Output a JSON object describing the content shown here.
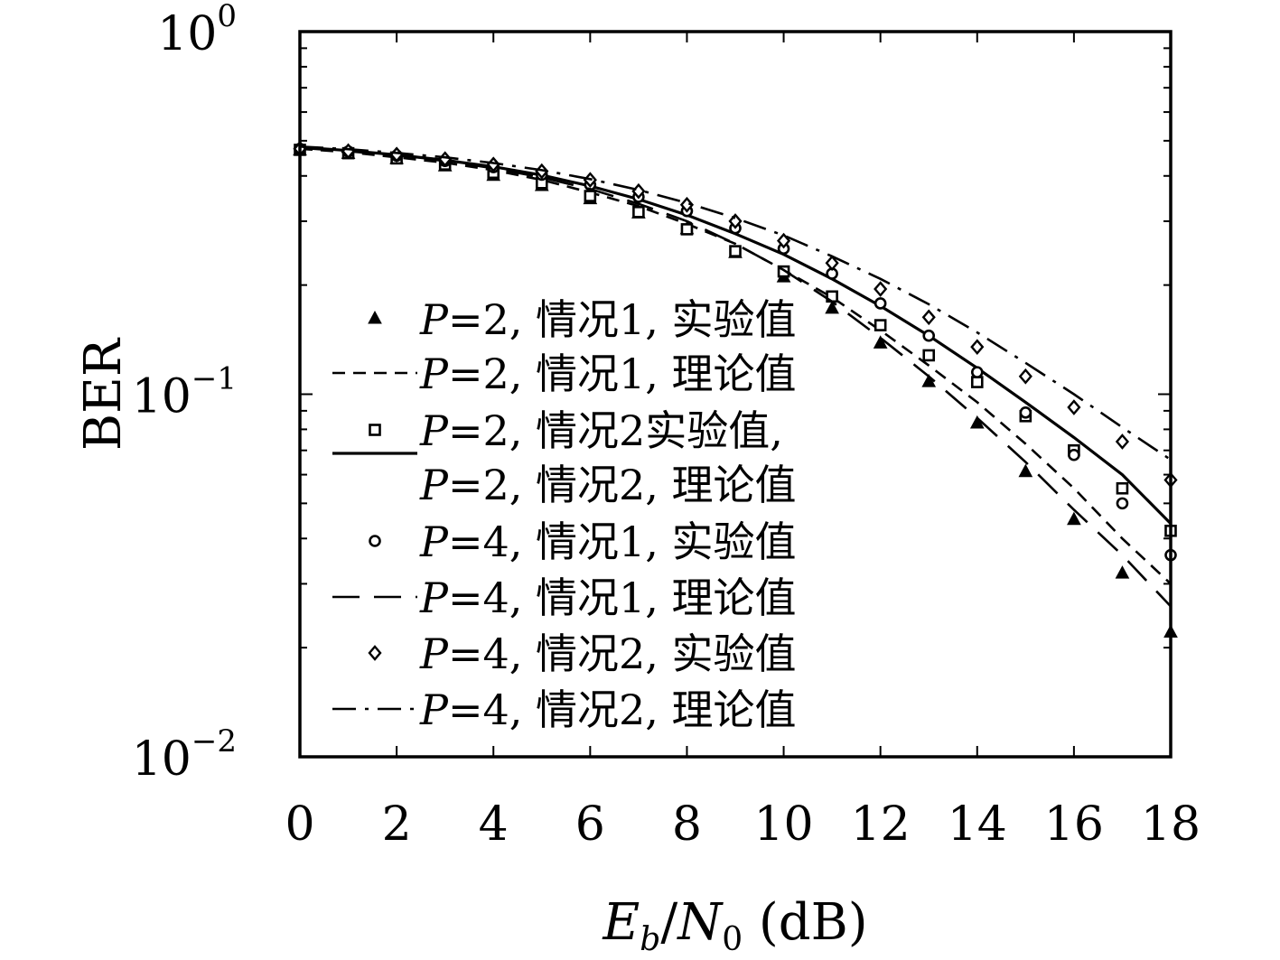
{
  "chart_data": {
    "type": "line",
    "title": "",
    "xlabel": "E_b/N_0 (dB)",
    "xlabel_parts": {
      "E": "E",
      "b": "b",
      "slash": "/",
      "N": "N",
      "zero": "0",
      "unit": " (dB)"
    },
    "ylabel": "BER",
    "y_scale": "log",
    "xlim": [
      0,
      18
    ],
    "ylim": [
      0.01,
      1
    ],
    "x_ticks": [
      "0",
      "2",
      "4",
      "6",
      "8",
      "10",
      "12",
      "14",
      "16",
      "18"
    ],
    "y_ticks": [
      {
        "base": "10",
        "exp": "0"
      },
      {
        "base": "10",
        "exp": "−1"
      },
      {
        "base": "10",
        "exp": "−2"
      }
    ],
    "grid": false,
    "legend_placement": "lower-left",
    "series": [
      {
        "name": "P=2, 情况1, 实验值",
        "legend": {
          "var": "P",
          "rest": "=2, 情况1, 实验值"
        },
        "style": "marker",
        "marker": "triangle",
        "x": [
          0,
          1,
          2,
          3,
          4,
          5,
          6,
          7,
          8,
          9,
          10,
          11,
          12,
          13,
          14,
          15,
          16,
          17,
          18
        ],
        "y": [
          0.47,
          0.46,
          0.445,
          0.425,
          0.4,
          0.375,
          0.345,
          0.315,
          0.285,
          0.245,
          0.21,
          0.172,
          0.138,
          0.108,
          0.083,
          0.061,
          0.045,
          0.032,
          0.022
        ]
      },
      {
        "name": "P=2, 情况1, 理论值",
        "legend": {
          "var": "P",
          "rest": "=2, 情况1, 理论值"
        },
        "style": "short-dash",
        "x": [
          0,
          1,
          2,
          3,
          4,
          5,
          6,
          7,
          8,
          9,
          10,
          11,
          12,
          13,
          14,
          15,
          16,
          17,
          18
        ],
        "y": [
          0.475,
          0.465,
          0.45,
          0.435,
          0.415,
          0.39,
          0.36,
          0.33,
          0.295,
          0.26,
          0.22,
          0.185,
          0.15,
          0.12,
          0.095,
          0.073,
          0.055,
          0.04,
          0.03
        ]
      },
      {
        "name": "P=2, 情况2实验值,",
        "legend": {
          "var": "P",
          "rest": "=2, 情况2实验值,"
        },
        "style": "marker",
        "marker": "square",
        "x": [
          0,
          1,
          2,
          3,
          4,
          5,
          6,
          7,
          8,
          9,
          10,
          11,
          12,
          13,
          14,
          15,
          16,
          17,
          18
        ],
        "y": [
          0.472,
          0.462,
          0.447,
          0.43,
          0.408,
          0.382,
          0.352,
          0.318,
          0.285,
          0.248,
          0.218,
          0.186,
          0.155,
          0.128,
          0.108,
          0.087,
          0.07,
          0.055,
          0.042
        ]
      },
      {
        "name": "P=2, 情况2, 理论值",
        "legend": {
          "var": "P",
          "rest": "=2, 情况2, 理论值"
        },
        "style": "solid",
        "x": [
          0,
          1,
          2,
          3,
          4,
          5,
          6,
          7,
          8,
          9,
          10,
          11,
          12,
          13,
          14,
          15,
          16,
          17,
          18
        ],
        "y": [
          0.48,
          0.47,
          0.457,
          0.442,
          0.424,
          0.402,
          0.375,
          0.345,
          0.312,
          0.277,
          0.243,
          0.208,
          0.175,
          0.145,
          0.118,
          0.095,
          0.076,
          0.06,
          0.044
        ]
      },
      {
        "name": "P=4, 情况1, 实验值",
        "legend": {
          "var": "P",
          "rest": "=4, 情况1, 实验值"
        },
        "style": "marker",
        "marker": "circle",
        "x": [
          0,
          1,
          2,
          3,
          4,
          5,
          6,
          7,
          8,
          9,
          10,
          11,
          12,
          13,
          14,
          15,
          16,
          17,
          18
        ],
        "y": [
          0.475,
          0.467,
          0.455,
          0.44,
          0.423,
          0.403,
          0.378,
          0.35,
          0.32,
          0.287,
          0.252,
          0.215,
          0.178,
          0.145,
          0.115,
          0.089,
          0.068,
          0.05,
          0.036
        ]
      },
      {
        "name": "P=4, 情况1, 理论值",
        "legend": {
          "var": "P",
          "rest": "=4, 情况1, 理论值"
        },
        "style": "long-dash",
        "x": [
          0,
          1,
          2,
          3,
          4,
          5,
          6,
          7,
          8,
          9,
          10,
          11,
          12,
          13,
          14,
          15,
          16,
          17,
          18
        ],
        "y": [
          0.478,
          0.468,
          0.455,
          0.44,
          0.42,
          0.396,
          0.368,
          0.335,
          0.3,
          0.26,
          0.22,
          0.18,
          0.143,
          0.112,
          0.086,
          0.065,
          0.048,
          0.036,
          0.026
        ]
      },
      {
        "name": "P=4, 情况2, 实验值",
        "legend": {
          "var": "P",
          "rest": "=4, 情况2, 实验值"
        },
        "style": "marker",
        "marker": "diamond",
        "x": [
          0,
          1,
          2,
          3,
          4,
          5,
          6,
          7,
          8,
          9,
          10,
          11,
          12,
          13,
          14,
          15,
          16,
          17,
          18
        ],
        "y": [
          0.475,
          0.468,
          0.458,
          0.445,
          0.43,
          0.412,
          0.39,
          0.363,
          0.333,
          0.3,
          0.265,
          0.23,
          0.195,
          0.163,
          0.135,
          0.112,
          0.092,
          0.074,
          0.058
        ]
      },
      {
        "name": "P=4, 情况2, 理论值",
        "legend": {
          "var": "P",
          "rest": "=4, 情况2, 理论值"
        },
        "style": "dash-dot",
        "x": [
          0,
          1,
          2,
          3,
          4,
          5,
          6,
          7,
          8,
          9,
          10,
          11,
          12,
          13,
          14,
          15,
          16,
          17,
          18
        ],
        "y": [
          0.482,
          0.474,
          0.463,
          0.45,
          0.434,
          0.415,
          0.392,
          0.366,
          0.337,
          0.306,
          0.274,
          0.24,
          0.208,
          0.177,
          0.148,
          0.122,
          0.1,
          0.081,
          0.066
        ]
      }
    ]
  }
}
